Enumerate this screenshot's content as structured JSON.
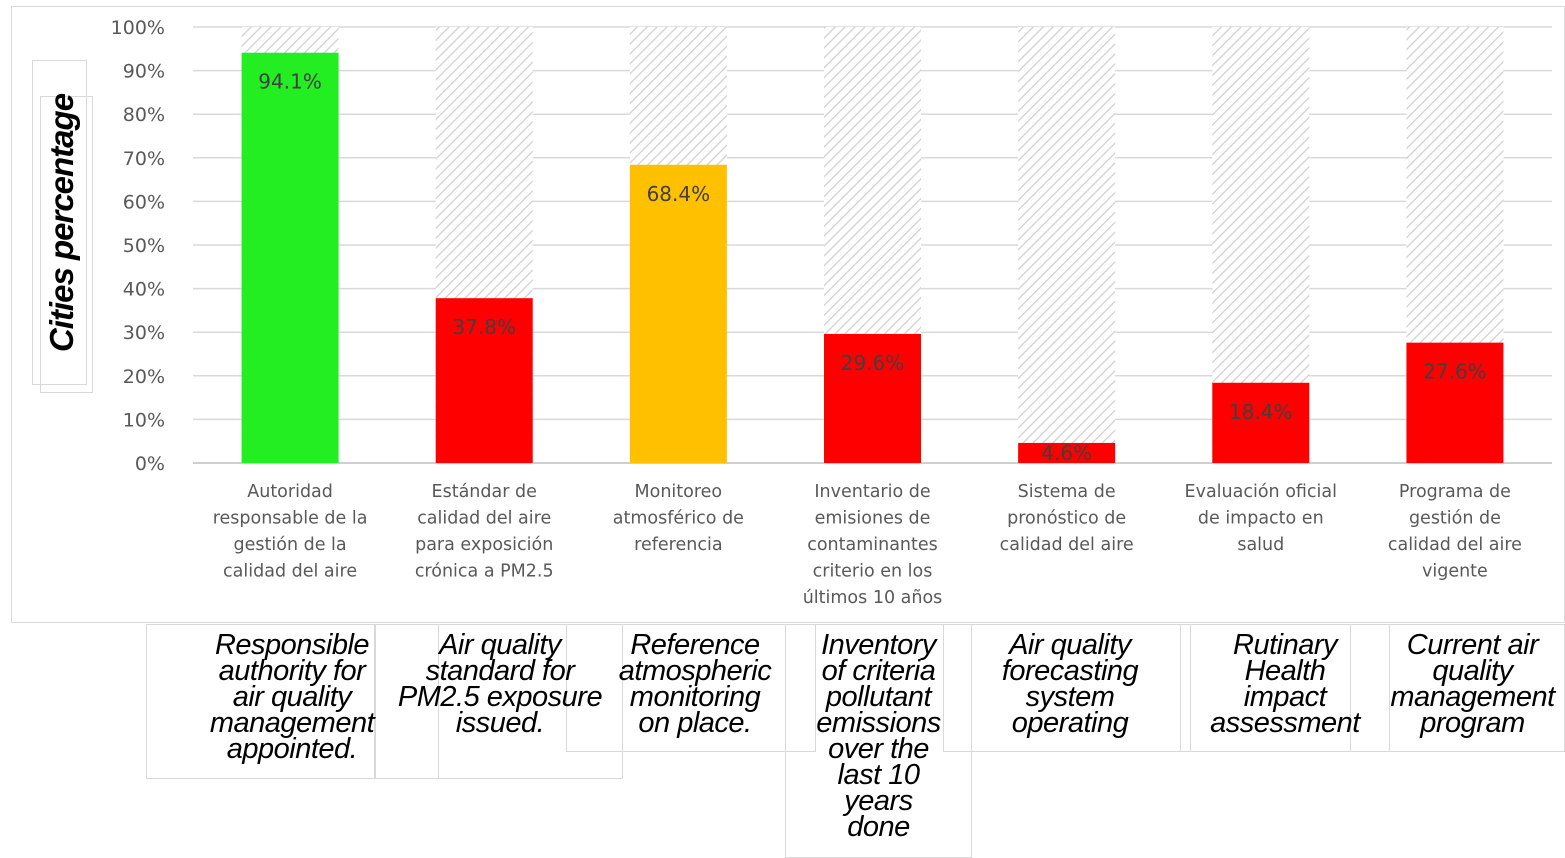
{
  "chart_data": {
    "type": "bar",
    "ylabel": "Cities percentage",
    "ylim": [
      0,
      100
    ],
    "yticks": [
      "0%",
      "10%",
      "20%",
      "30%",
      "40%",
      "50%",
      "60%",
      "70%",
      "80%",
      "90%",
      "100%"
    ],
    "grid": true,
    "background_bars": "hatched 100% reference bar behind each bar",
    "categories": [
      "Autoridad responsable de la gestión de la calidad del aire",
      "Estándar de calidad del aire para exposición crónica a PM2.5",
      "Monitoreo atmosférico de referencia",
      "Inventario de emisiones de contaminantes criterio en los últimos 10 años",
      "Sistema de pronóstico de calidad del aire",
      "Evaluación oficial de impacto en salud",
      "Programa de gestión de calidad del aire vigente"
    ],
    "category_lines": [
      [
        "Autoridad",
        "responsable de la",
        "gestión de la",
        "calidad del aire"
      ],
      [
        "Estándar de",
        "calidad del aire",
        "para exposición",
        "crónica a PM2.5"
      ],
      [
        "Monitoreo",
        "atmosférico de",
        "referencia"
      ],
      [
        "Inventario de",
        "emisiones de",
        "contaminantes",
        "criterio en los",
        "últimos 10 años"
      ],
      [
        "Sistema de",
        "pronóstico de",
        "calidad del aire"
      ],
      [
        "Evaluación oficial",
        "de impacto en",
        "salud"
      ],
      [
        "Programa de",
        "gestión de",
        "calidad del aire",
        "vigente"
      ]
    ],
    "values": [
      94.1,
      37.8,
      68.4,
      29.6,
      4.6,
      18.4,
      27.6
    ],
    "data_labels": [
      "94.1%",
      "37.8%",
      "68.4%",
      "29.6%",
      "4.6%",
      "18.4%",
      "27.6%"
    ],
    "bar_colors": [
      "#22ee22",
      "#ff0000",
      "#ffc000",
      "#ff0000",
      "#ff0000",
      "#ff0000",
      "#ff0000"
    ],
    "label_color": "#404040",
    "grid_color": "#d9d9d9",
    "hatch_color": "#d0d0d0"
  },
  "translations": [
    "Responsible\nauthority for\nair quality\nmanagement\nappointed.",
    "Air quality\nstandard for\nPM2.5 exposure\nissued.",
    "Reference\natmospheric\nmonitoring\non place.",
    "Inventory\nof criteria\npollutant\nemissions\nover the\nlast 10\nyears\ndone",
    "Air quality\nforecasting\nsystem\noperating",
    "Rutinary\nHealth\nimpact\nassessment",
    "Current air\nquality\nmanagement\nprogram"
  ]
}
